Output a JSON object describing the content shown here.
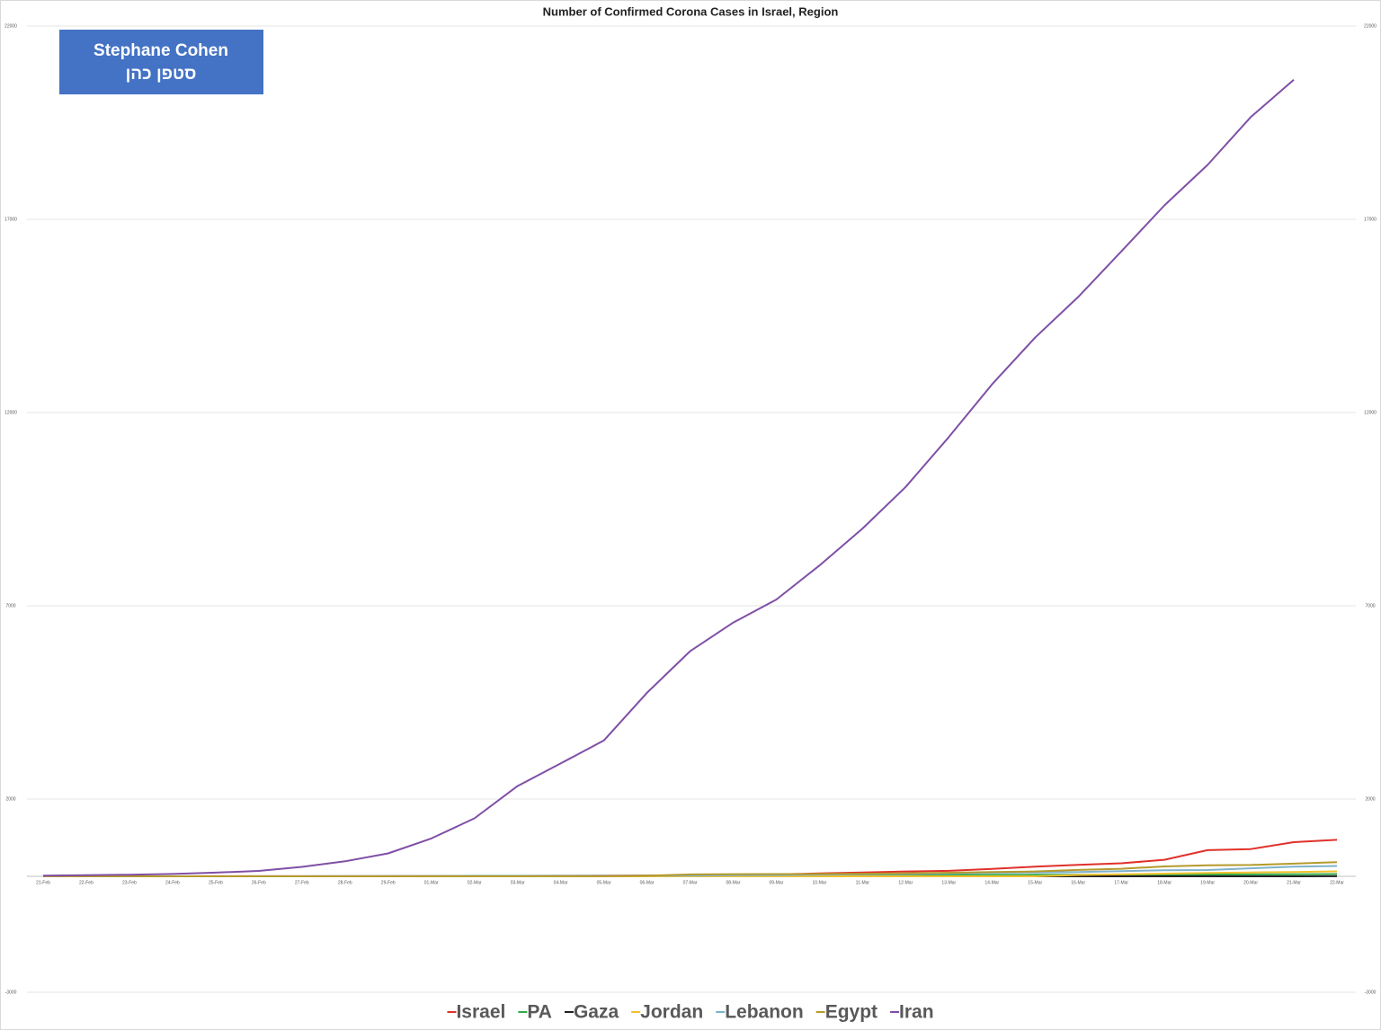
{
  "chart_data": {
    "type": "line",
    "title": "Number of Confirmed Corona Cases in Israel, Region",
    "annotation": [
      "Stephane Cohen",
      "סטפן כהן"
    ],
    "categories": [
      "21-Feb",
      "22-Feb",
      "23-Feb",
      "24-Feb",
      "25-Feb",
      "26-Feb",
      "27-Feb",
      "28-Feb",
      "29-Feb",
      "01-Mar",
      "02-Mar",
      "03-Mar",
      "04-Mar",
      "05-Mar",
      "06-Mar",
      "07-Mar",
      "08-Mar",
      "09-Mar",
      "10-Mar",
      "11-Mar",
      "12-Mar",
      "13-Mar",
      "14-Mar",
      "15-Mar",
      "16-Mar",
      "17-Mar",
      "18-Mar",
      "19-Mar",
      "20-Mar",
      "21-Mar",
      "22-Mar"
    ],
    "ylim": [
      -3000,
      22000
    ],
    "yticks": [
      -3000,
      2000,
      7000,
      12000,
      17000,
      22000
    ],
    "grid": true,
    "legend": "bottom",
    "series": [
      {
        "name": "Israel",
        "color": "#e0312b",
        "values": [
          1,
          1,
          1,
          1,
          2,
          2,
          3,
          3,
          6,
          7,
          10,
          12,
          15,
          17,
          21,
          25,
          39,
          50,
          75,
          100,
          126,
          143,
          193,
          250,
          298,
          337,
          427,
          677,
          705,
          883,
          945
        ]
      },
      {
        "name": "PA",
        "color": "#2eaa4a",
        "values": [
          0,
          0,
          0,
          0,
          0,
          0,
          0,
          0,
          0,
          0,
          0,
          0,
          0,
          0,
          7,
          16,
          19,
          25,
          26,
          29,
          30,
          35,
          38,
          39,
          41,
          44,
          44,
          47,
          48,
          52,
          57
        ]
      },
      {
        "name": "Gaza",
        "color": "#222222",
        "values": [
          0,
          0,
          0,
          0,
          0,
          0,
          0,
          0,
          0,
          0,
          0,
          0,
          0,
          0,
          0,
          0,
          0,
          0,
          0,
          0,
          0,
          0,
          0,
          0,
          0,
          0,
          0,
          0,
          0,
          0,
          2
        ]
      },
      {
        "name": "Jordan",
        "color": "#f2c12e",
        "values": [
          0,
          0,
          0,
          0,
          0,
          0,
          0,
          0,
          0,
          0,
          1,
          1,
          1,
          1,
          1,
          1,
          1,
          1,
          1,
          1,
          1,
          1,
          1,
          1,
          34,
          52,
          69,
          85,
          99,
          112,
          127
        ]
      },
      {
        "name": "Lebanon",
        "color": "#7fb2cc",
        "values": [
          1,
          1,
          1,
          1,
          1,
          2,
          2,
          4,
          7,
          10,
          13,
          13,
          13,
          15,
          16,
          22,
          28,
          32,
          41,
          52,
          61,
          77,
          93,
          99,
          109,
          133,
          157,
          163,
          206,
          248,
          267
        ]
      },
      {
        "name": "Egypt",
        "color": "#b59a2c",
        "values": [
          1,
          1,
          1,
          1,
          1,
          1,
          1,
          1,
          1,
          2,
          2,
          2,
          2,
          3,
          15,
          48,
          55,
          59,
          60,
          67,
          80,
          93,
          109,
          126,
          166,
          196,
          256,
          285,
          294,
          327,
          366
        ]
      },
      {
        "name": "Iran",
        "color": "#7f4fa6",
        "values": [
          18,
          28,
          43,
          61,
          95,
          139,
          245,
          388,
          593,
          978,
          1501,
          2336,
          2922,
          3513,
          4747,
          5823,
          6566,
          7161,
          8042,
          9000,
          10075,
          11364,
          12729,
          13938,
          14991,
          16169,
          17361,
          18407,
          19644,
          20610,
          null
        ]
      }
    ]
  }
}
